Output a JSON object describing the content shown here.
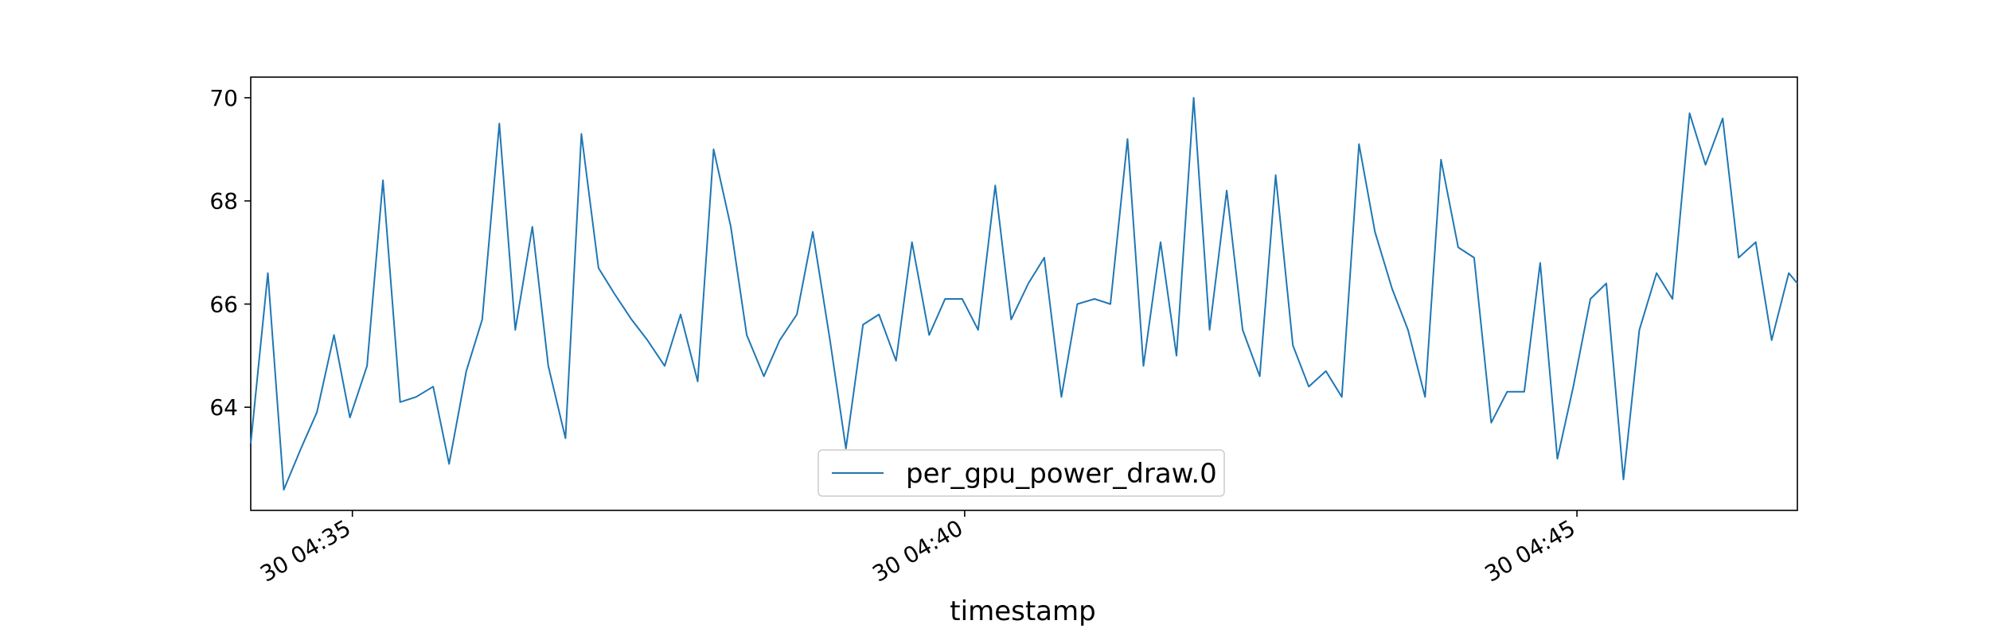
{
  "chart_data": {
    "type": "line",
    "title": "",
    "xlabel": "timestamp",
    "ylabel": "",
    "x_tick_labels": [
      "30 04:35",
      "30 04:40",
      "30 04:45"
    ],
    "x_tick_minutes": [
      35,
      40,
      45
    ],
    "xlim": [
      34.17,
      46.8
    ],
    "y_ticks": [
      64,
      66,
      68,
      70
    ],
    "y_tick_labels": [
      "64",
      "66",
      "68",
      "70"
    ],
    "ylim": [
      62.0,
      70.4
    ],
    "grid": false,
    "legend": {
      "placement": "lower-center",
      "entries": [
        "per_gpu_power_draw.0"
      ]
    },
    "colors": {
      "series": "#1f77b4",
      "axes": "#000000",
      "legend_border": "#cccccc"
    },
    "series": [
      {
        "name": "per_gpu_power_draw.0",
        "x_unit": "minutes past 04:00 on day 30",
        "x": [
          34.17,
          34.31,
          34.44,
          34.58,
          34.71,
          34.85,
          34.98,
          35.12,
          35.25,
          35.39,
          35.52,
          35.66,
          35.79,
          35.93,
          36.06,
          36.2,
          36.33,
          36.47,
          36.6,
          36.74,
          36.87,
          37.01,
          37.14,
          37.28,
          37.41,
          37.55,
          37.68,
          37.82,
          37.95,
          38.09,
          38.22,
          38.36,
          38.49,
          38.63,
          38.76,
          38.9,
          39.03,
          39.17,
          39.3,
          39.44,
          39.57,
          39.71,
          39.84,
          39.98,
          40.11,
          40.25,
          40.38,
          40.52,
          40.65,
          40.79,
          40.92,
          41.06,
          41.19,
          41.33,
          41.46,
          41.6,
          41.73,
          41.87,
          42.0,
          42.14,
          42.27,
          42.41,
          42.54,
          42.68,
          42.81,
          42.95,
          43.08,
          43.22,
          43.35,
          43.49,
          43.62,
          43.76,
          43.89,
          44.03,
          44.16,
          44.3,
          44.43,
          44.57,
          44.7,
          44.84,
          44.97,
          45.11,
          45.24,
          45.38,
          45.51,
          45.65,
          45.78,
          45.92,
          46.05,
          46.19,
          46.32,
          46.46,
          46.59,
          46.73,
          46.8
        ],
        "values": [
          63.3,
          66.6,
          62.4,
          63.2,
          63.9,
          65.4,
          63.8,
          64.8,
          68.4,
          64.1,
          64.2,
          64.4,
          62.9,
          64.7,
          65.7,
          69.5,
          65.5,
          67.5,
          64.8,
          63.4,
          69.3,
          66.7,
          66.2,
          65.7,
          65.3,
          64.8,
          65.8,
          64.5,
          69.0,
          67.5,
          65.4,
          64.6,
          65.3,
          65.8,
          67.4,
          65.3,
          63.2,
          65.6,
          65.8,
          64.9,
          67.2,
          65.4,
          66.1,
          66.1,
          65.5,
          68.3,
          65.7,
          66.4,
          66.9,
          64.2,
          66.0,
          66.1,
          66.0,
          69.2,
          64.8,
          67.2,
          65.0,
          70.0,
          65.5,
          68.2,
          65.5,
          64.6,
          68.5,
          65.2,
          64.4,
          64.7,
          64.2,
          69.1,
          67.4,
          66.3,
          65.5,
          64.2,
          68.8,
          67.1,
          66.9,
          63.7,
          64.3,
          64.3,
          66.8,
          63.0,
          64.4,
          66.1,
          66.4,
          62.6,
          65.5,
          66.6,
          66.1,
          69.7,
          68.7,
          69.6,
          66.9,
          67.2,
          65.3,
          66.6,
          66.4
        ]
      }
    ]
  }
}
